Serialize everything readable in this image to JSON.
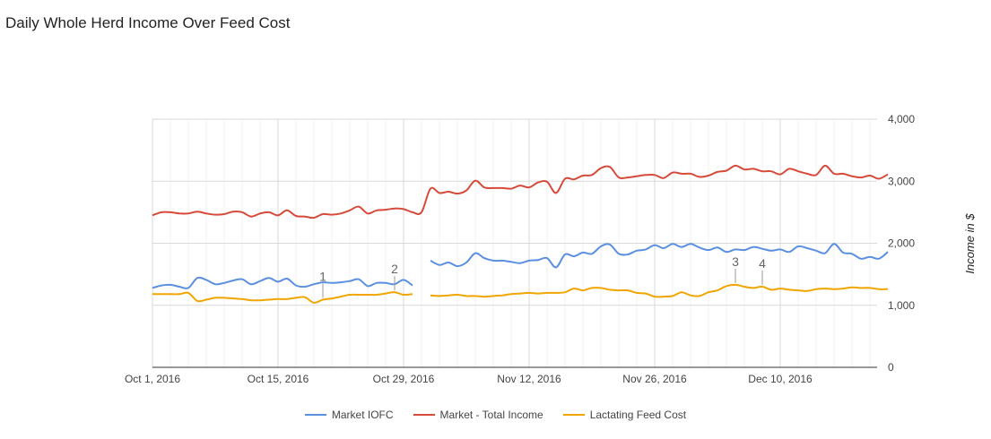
{
  "title": "Daily Whole Herd Income Over Feed Cost",
  "chart_data": {
    "type": "line",
    "title": "Daily Whole Herd Income Over Feed Cost",
    "xlabel": "",
    "ylabel": "Income in $",
    "xlim": [
      "2016-10-01",
      "2016-12-19"
    ],
    "ylim": [
      0,
      4000
    ],
    "yticks": [
      {
        "value": 0,
        "label": "0"
      },
      {
        "value": 1000,
        "label": "1,000"
      },
      {
        "value": 2000,
        "label": "2,000"
      },
      {
        "value": 3000,
        "label": "3,000"
      },
      {
        "value": 4000,
        "label": "4,000"
      }
    ],
    "xticks": [
      {
        "value": "2016-10-01",
        "label": "Oct 1, 2016"
      },
      {
        "value": "2016-10-15",
        "label": "Oct 15, 2016"
      },
      {
        "value": "2016-10-29",
        "label": "Oct 29, 2016"
      },
      {
        "value": "2016-11-12",
        "label": "Nov 12, 2016"
      },
      {
        "value": "2016-11-26",
        "label": "Nov 26, 2016"
      },
      {
        "value": "2016-12-10",
        "label": "Dec 10, 2016"
      }
    ],
    "grid": true,
    "legend_position": "bottom",
    "series": [
      {
        "name": "Market IOFC",
        "color": "#5b8fe0",
        "points": [
          [
            "2016-10-01",
            1280
          ],
          [
            "2016-10-02",
            1320
          ],
          [
            "2016-10-03",
            1330
          ],
          [
            "2016-10-04",
            1300
          ],
          [
            "2016-10-05",
            1280
          ],
          [
            "2016-10-06",
            1440
          ],
          [
            "2016-10-07",
            1410
          ],
          [
            "2016-10-08",
            1340
          ],
          [
            "2016-10-09",
            1360
          ],
          [
            "2016-10-10",
            1400
          ],
          [
            "2016-10-11",
            1420
          ],
          [
            "2016-10-12",
            1340
          ],
          [
            "2016-10-13",
            1390
          ],
          [
            "2016-10-14",
            1440
          ],
          [
            "2016-10-15",
            1380
          ],
          [
            "2016-10-16",
            1430
          ],
          [
            "2016-10-17",
            1320
          ],
          [
            "2016-10-18",
            1300
          ],
          [
            "2016-10-19",
            1340
          ],
          [
            "2016-10-20",
            1370
          ],
          [
            "2016-10-21",
            1360
          ],
          [
            "2016-10-22",
            1370
          ],
          [
            "2016-10-23",
            1390
          ],
          [
            "2016-10-24",
            1420
          ],
          [
            "2016-10-25",
            1310
          ],
          [
            "2016-10-26",
            1360
          ],
          [
            "2016-10-27",
            1360
          ],
          [
            "2016-10-28",
            1340
          ],
          [
            "2016-10-29",
            1410
          ],
          [
            "2016-10-30",
            1320
          ],
          [
            "2016-10-31",
            null
          ],
          [
            "2016-11-01",
            1720
          ],
          [
            "2016-11-02",
            1650
          ],
          [
            "2016-11-03",
            1690
          ],
          [
            "2016-11-04",
            1630
          ],
          [
            "2016-11-05",
            1690
          ],
          [
            "2016-11-06",
            1840
          ],
          [
            "2016-11-07",
            1760
          ],
          [
            "2016-11-08",
            1720
          ],
          [
            "2016-11-09",
            1720
          ],
          [
            "2016-11-10",
            1700
          ],
          [
            "2016-11-11",
            1680
          ],
          [
            "2016-11-12",
            1720
          ],
          [
            "2016-11-13",
            1730
          ],
          [
            "2016-11-14",
            1760
          ],
          [
            "2016-11-15",
            1610
          ],
          [
            "2016-11-16",
            1820
          ],
          [
            "2016-11-17",
            1790
          ],
          [
            "2016-11-18",
            1850
          ],
          [
            "2016-11-19",
            1830
          ],
          [
            "2016-11-20",
            1950
          ],
          [
            "2016-11-21",
            1980
          ],
          [
            "2016-11-22",
            1830
          ],
          [
            "2016-11-23",
            1820
          ],
          [
            "2016-11-24",
            1880
          ],
          [
            "2016-11-25",
            1900
          ],
          [
            "2016-11-26",
            1970
          ],
          [
            "2016-11-27",
            1920
          ],
          [
            "2016-11-28",
            1990
          ],
          [
            "2016-11-29",
            1940
          ],
          [
            "2016-11-30",
            1990
          ],
          [
            "2016-12-01",
            1930
          ],
          [
            "2016-12-02",
            1890
          ],
          [
            "2016-12-03",
            1930
          ],
          [
            "2016-12-04",
            1860
          ],
          [
            "2016-12-05",
            1900
          ],
          [
            "2016-12-06",
            1890
          ],
          [
            "2016-12-07",
            1940
          ],
          [
            "2016-12-08",
            1910
          ],
          [
            "2016-12-09",
            1880
          ],
          [
            "2016-12-10",
            1900
          ],
          [
            "2016-12-11",
            1860
          ],
          [
            "2016-12-12",
            1950
          ],
          [
            "2016-12-13",
            1920
          ],
          [
            "2016-12-14",
            1880
          ],
          [
            "2016-12-15",
            1840
          ],
          [
            "2016-12-16",
            1990
          ],
          [
            "2016-12-17",
            1850
          ],
          [
            "2016-12-18",
            1830
          ],
          [
            "2016-12-19",
            1750
          ],
          [
            "2016-12-20",
            1780
          ],
          [
            "2016-12-21",
            1750
          ],
          [
            "2016-12-22",
            1860
          ]
        ]
      },
      {
        "name": "Market - Total Income",
        "color": "#d64a3a",
        "points": [
          [
            "2016-10-01",
            2450
          ],
          [
            "2016-10-02",
            2500
          ],
          [
            "2016-10-03",
            2500
          ],
          [
            "2016-10-04",
            2480
          ],
          [
            "2016-10-05",
            2480
          ],
          [
            "2016-10-06",
            2510
          ],
          [
            "2016-10-07",
            2480
          ],
          [
            "2016-10-08",
            2460
          ],
          [
            "2016-10-09",
            2470
          ],
          [
            "2016-10-10",
            2510
          ],
          [
            "2016-10-11",
            2500
          ],
          [
            "2016-10-12",
            2430
          ],
          [
            "2016-10-13",
            2480
          ],
          [
            "2016-10-14",
            2500
          ],
          [
            "2016-10-15",
            2450
          ],
          [
            "2016-10-16",
            2530
          ],
          [
            "2016-10-17",
            2440
          ],
          [
            "2016-10-18",
            2430
          ],
          [
            "2016-10-19",
            2410
          ],
          [
            "2016-10-20",
            2470
          ],
          [
            "2016-10-21",
            2460
          ],
          [
            "2016-10-22",
            2480
          ],
          [
            "2016-10-23",
            2530
          ],
          [
            "2016-10-24",
            2590
          ],
          [
            "2016-10-25",
            2480
          ],
          [
            "2016-10-26",
            2530
          ],
          [
            "2016-10-27",
            2540
          ],
          [
            "2016-10-28",
            2560
          ],
          [
            "2016-10-29",
            2550
          ],
          [
            "2016-10-30",
            2500
          ],
          [
            "2016-10-31",
            2500
          ],
          [
            "2016-11-01",
            2880
          ],
          [
            "2016-11-02",
            2810
          ],
          [
            "2016-11-03",
            2830
          ],
          [
            "2016-11-04",
            2800
          ],
          [
            "2016-11-05",
            2850
          ],
          [
            "2016-11-06",
            3010
          ],
          [
            "2016-11-07",
            2900
          ],
          [
            "2016-11-08",
            2890
          ],
          [
            "2016-11-09",
            2890
          ],
          [
            "2016-11-10",
            2880
          ],
          [
            "2016-11-11",
            2930
          ],
          [
            "2016-11-12",
            2900
          ],
          [
            "2016-11-13",
            2980
          ],
          [
            "2016-11-14",
            2990
          ],
          [
            "2016-11-15",
            2810
          ],
          [
            "2016-11-16",
            3040
          ],
          [
            "2016-11-17",
            3030
          ],
          [
            "2016-11-18",
            3090
          ],
          [
            "2016-11-19",
            3100
          ],
          [
            "2016-11-20",
            3210
          ],
          [
            "2016-11-21",
            3230
          ],
          [
            "2016-11-22",
            3060
          ],
          [
            "2016-11-23",
            3060
          ],
          [
            "2016-11-24",
            3080
          ],
          [
            "2016-11-25",
            3100
          ],
          [
            "2016-11-26",
            3100
          ],
          [
            "2016-11-27",
            3050
          ],
          [
            "2016-11-28",
            3140
          ],
          [
            "2016-11-29",
            3120
          ],
          [
            "2016-11-30",
            3120
          ],
          [
            "2016-12-01",
            3070
          ],
          [
            "2016-12-02",
            3090
          ],
          [
            "2016-12-03",
            3150
          ],
          [
            "2016-12-04",
            3170
          ],
          [
            "2016-12-05",
            3250
          ],
          [
            "2016-12-06",
            3190
          ],
          [
            "2016-12-07",
            3200
          ],
          [
            "2016-12-08",
            3160
          ],
          [
            "2016-12-09",
            3160
          ],
          [
            "2016-12-10",
            3110
          ],
          [
            "2016-12-11",
            3200
          ],
          [
            "2016-12-12",
            3160
          ],
          [
            "2016-12-13",
            3120
          ],
          [
            "2016-12-14",
            3100
          ],
          [
            "2016-12-15",
            3250
          ],
          [
            "2016-12-16",
            3120
          ],
          [
            "2016-12-17",
            3120
          ],
          [
            "2016-12-18",
            3080
          ],
          [
            "2016-12-19",
            3060
          ],
          [
            "2016-12-20",
            3090
          ],
          [
            "2016-12-21",
            3040
          ],
          [
            "2016-12-22",
            3110
          ]
        ]
      },
      {
        "name": "Lactating Feed Cost",
        "color": "#f0a500",
        "points": [
          [
            "2016-10-01",
            1180
          ],
          [
            "2016-10-02",
            1180
          ],
          [
            "2016-10-03",
            1180
          ],
          [
            "2016-10-04",
            1180
          ],
          [
            "2016-10-05",
            1200
          ],
          [
            "2016-10-06",
            1070
          ],
          [
            "2016-10-07",
            1090
          ],
          [
            "2016-10-08",
            1120
          ],
          [
            "2016-10-09",
            1120
          ],
          [
            "2016-10-10",
            1110
          ],
          [
            "2016-10-11",
            1100
          ],
          [
            "2016-10-12",
            1080
          ],
          [
            "2016-10-13",
            1080
          ],
          [
            "2016-10-14",
            1090
          ],
          [
            "2016-10-15",
            1100
          ],
          [
            "2016-10-16",
            1100
          ],
          [
            "2016-10-17",
            1120
          ],
          [
            "2016-10-18",
            1130
          ],
          [
            "2016-10-19",
            1040
          ],
          [
            "2016-10-20",
            1090
          ],
          [
            "2016-10-21",
            1110
          ],
          [
            "2016-10-22",
            1140
          ],
          [
            "2016-10-23",
            1170
          ],
          [
            "2016-10-24",
            1170
          ],
          [
            "2016-10-25",
            1170
          ],
          [
            "2016-10-26",
            1170
          ],
          [
            "2016-10-27",
            1190
          ],
          [
            "2016-10-28",
            1210
          ],
          [
            "2016-10-29",
            1170
          ],
          [
            "2016-10-30",
            1180
          ],
          [
            "2016-10-31",
            null
          ],
          [
            "2016-11-01",
            1160
          ],
          [
            "2016-11-02",
            1150
          ],
          [
            "2016-11-03",
            1160
          ],
          [
            "2016-11-04",
            1170
          ],
          [
            "2016-11-05",
            1150
          ],
          [
            "2016-11-06",
            1150
          ],
          [
            "2016-11-07",
            1140
          ],
          [
            "2016-11-08",
            1150
          ],
          [
            "2016-11-09",
            1160
          ],
          [
            "2016-11-10",
            1180
          ],
          [
            "2016-11-11",
            1190
          ],
          [
            "2016-11-12",
            1200
          ],
          [
            "2016-11-13",
            1190
          ],
          [
            "2016-11-14",
            1200
          ],
          [
            "2016-11-15",
            1200
          ],
          [
            "2016-11-16",
            1210
          ],
          [
            "2016-11-17",
            1270
          ],
          [
            "2016-11-18",
            1240
          ],
          [
            "2016-11-19",
            1280
          ],
          [
            "2016-11-20",
            1280
          ],
          [
            "2016-11-21",
            1250
          ],
          [
            "2016-11-22",
            1240
          ],
          [
            "2016-11-23",
            1240
          ],
          [
            "2016-11-24",
            1200
          ],
          [
            "2016-11-25",
            1190
          ],
          [
            "2016-11-26",
            1140
          ],
          [
            "2016-11-27",
            1140
          ],
          [
            "2016-11-28",
            1150
          ],
          [
            "2016-11-29",
            1210
          ],
          [
            "2016-11-30",
            1160
          ],
          [
            "2016-12-01",
            1150
          ],
          [
            "2016-12-02",
            1210
          ],
          [
            "2016-12-03",
            1240
          ],
          [
            "2016-12-04",
            1310
          ],
          [
            "2016-12-05",
            1330
          ],
          [
            "2016-12-06",
            1300
          ],
          [
            "2016-12-07",
            1280
          ],
          [
            "2016-12-08",
            1300
          ],
          [
            "2016-12-09",
            1250
          ],
          [
            "2016-12-10",
            1270
          ],
          [
            "2016-12-11",
            1250
          ],
          [
            "2016-12-12",
            1240
          ],
          [
            "2016-12-13",
            1230
          ],
          [
            "2016-12-14",
            1260
          ],
          [
            "2016-12-15",
            1270
          ],
          [
            "2016-12-16",
            1260
          ],
          [
            "2016-12-17",
            1270
          ],
          [
            "2016-12-18",
            1290
          ],
          [
            "2016-12-19",
            1280
          ],
          [
            "2016-12-20",
            1280
          ],
          [
            "2016-12-21",
            1260
          ],
          [
            "2016-12-22",
            1260
          ]
        ]
      }
    ],
    "annotations": [
      {
        "label": "1",
        "x": "2016-10-20",
        "series": "Lactating Feed Cost"
      },
      {
        "label": "2",
        "x": "2016-10-28",
        "series": "Lactating Feed Cost"
      },
      {
        "label": "3",
        "x": "2016-12-05",
        "series": "Lactating Feed Cost"
      },
      {
        "label": "4",
        "x": "2016-12-08",
        "series": "Lactating Feed Cost"
      }
    ]
  }
}
